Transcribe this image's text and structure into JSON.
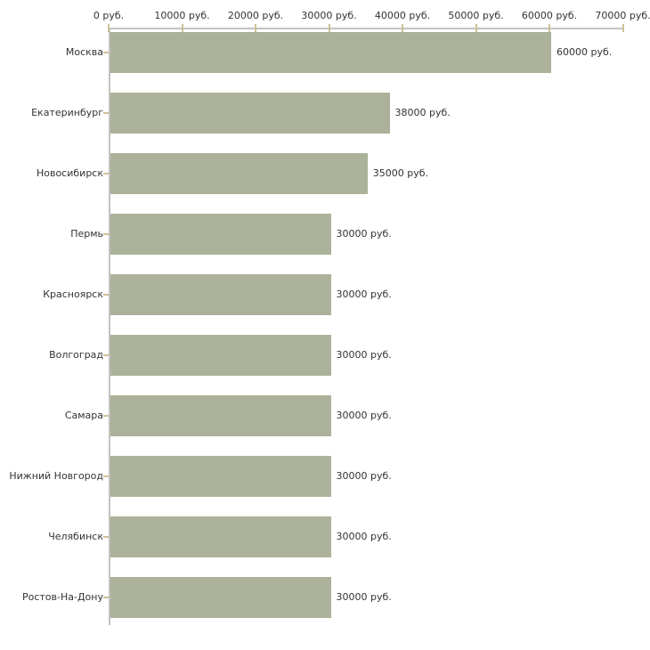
{
  "chart_data": {
    "type": "bar",
    "orientation": "horizontal",
    "title": "",
    "xlabel": "",
    "ylabel": "",
    "categories": [
      "Москва",
      "Екатеринбург",
      "Новосибирск",
      "Пермь",
      "Красноярск",
      "Волгоград",
      "Самара",
      "Нижний Новгород",
      "Челябинск",
      "Ростов-На-Дону"
    ],
    "values": [
      60000,
      38000,
      35000,
      30000,
      30000,
      30000,
      30000,
      30000,
      30000,
      30000
    ],
    "value_labels": [
      "60000 руб.",
      "38000 руб.",
      "35000 руб.",
      "30000 руб.",
      "30000 руб.",
      "30000 руб.",
      "30000 руб.",
      "30000 руб.",
      "30000 руб.",
      "30000 руб."
    ],
    "x_tick_values": [
      0,
      10000,
      20000,
      30000,
      40000,
      50000,
      60000,
      70000
    ],
    "x_tick_labels": [
      "0 руб.",
      "10000 руб.",
      "20000 руб.",
      "30000 руб.",
      "40000 руб.",
      "50000 руб.",
      "60000 руб.",
      "70000 руб."
    ],
    "xlim": [
      0,
      70000
    ],
    "axis_position": "top",
    "grid": "off",
    "legend": "none",
    "colors": {
      "bar": "#abb299",
      "axis": "#c2c2c2",
      "tick": "#cdc193",
      "text": "#333333",
      "background": "#ffffff"
    }
  }
}
